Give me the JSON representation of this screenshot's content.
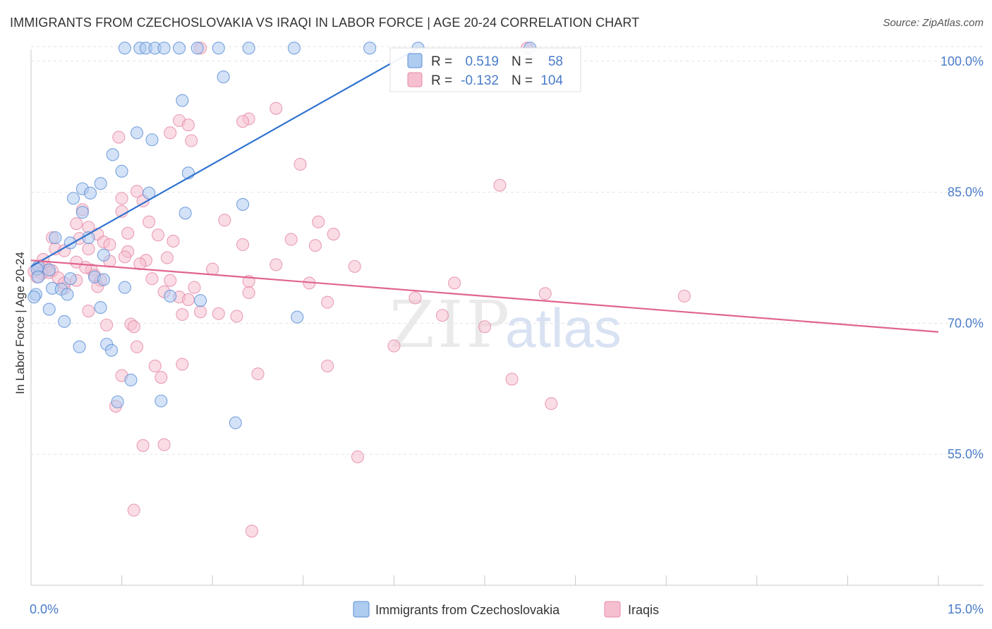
{
  "title": "IMMIGRANTS FROM CZECHOSLOVAKIA VS IRAQI IN LABOR FORCE | AGE 20-24 CORRELATION CHART",
  "source": "Source: ZipAtlas.com",
  "watermark": {
    "zip": "ZIP",
    "atlas": "atlas"
  },
  "colors": {
    "blue": "#5b8fd6",
    "blue_fill": "#aecbf0",
    "blue_line": "#2f73cf",
    "pink": "#e58aa8",
    "pink_fill": "#f6bfd0",
    "pink_line": "#e0648f",
    "axis_text": "#4a7cc9",
    "grid": "#e3e3e3"
  },
  "chart_data": {
    "type": "scatter",
    "title": "IMMIGRANTS FROM CZECHOSLOVAKIA VS IRAQI IN LABOR FORCE | AGE 20-24 CORRELATION CHART",
    "xlabel": "",
    "ylabel": "In Labor Force | Age 20-24",
    "xlim": [
      0,
      15
    ],
    "ylim": [
      40,
      102
    ],
    "x_tick_labels": [
      {
        "value": 0,
        "label": "0.0%"
      },
      {
        "value": 15,
        "label": "15.0%"
      }
    ],
    "y_ticks": [
      {
        "value": 100,
        "label": "100.0%"
      },
      {
        "value": 85,
        "label": "85.0%"
      },
      {
        "value": 70,
        "label": "70.0%"
      },
      {
        "value": 55,
        "label": "55.0%"
      }
    ],
    "legend_position": "top-center",
    "legend": [
      {
        "r_label": "R =",
        "r_value": "0.519",
        "n_label": "N =",
        "n_value": "58"
      },
      {
        "r_label": "R =",
        "r_value": "-0.132",
        "n_label": "N =",
        "n_value": "104"
      }
    ],
    "series": [
      {
        "name": "Immigrants from Czechoslovakia",
        "color": "blue",
        "r": 0.519,
        "n": 58,
        "trend": {
          "x0": 0.0,
          "y0": 76.5,
          "x1": 6.4,
          "y1": 101.5
        },
        "points": [
          [
            1.55,
            101.5
          ],
          [
            1.8,
            101.5
          ],
          [
            1.9,
            101.5
          ],
          [
            2.05,
            101.5
          ],
          [
            2.2,
            101.5
          ],
          [
            2.45,
            101.5
          ],
          [
            2.75,
            101.5
          ],
          [
            3.1,
            101.5
          ],
          [
            3.6,
            101.5
          ],
          [
            4.35,
            101.5
          ],
          [
            5.6,
            101.5
          ],
          [
            6.4,
            101.5
          ],
          [
            8.25,
            101.5
          ],
          [
            3.18,
            98.2
          ],
          [
            2.5,
            95.5
          ],
          [
            1.75,
            91.8
          ],
          [
            2.0,
            91.0
          ],
          [
            1.35,
            89.3
          ],
          [
            1.5,
            87.4
          ],
          [
            2.6,
            87.2
          ],
          [
            1.15,
            86.0
          ],
          [
            0.85,
            85.4
          ],
          [
            0.98,
            84.9
          ],
          [
            1.95,
            84.9
          ],
          [
            0.7,
            84.3
          ],
          [
            3.5,
            83.6
          ],
          [
            0.85,
            82.7
          ],
          [
            2.55,
            82.6
          ],
          [
            0.4,
            79.8
          ],
          [
            0.95,
            79.8
          ],
          [
            0.65,
            79.2
          ],
          [
            1.2,
            77.8
          ],
          [
            0.12,
            76.5
          ],
          [
            0.1,
            76.2
          ],
          [
            0.3,
            76.1
          ],
          [
            0.12,
            75.3
          ],
          [
            0.65,
            75.1
          ],
          [
            1.05,
            75.3
          ],
          [
            1.2,
            75.0
          ],
          [
            0.35,
            74.0
          ],
          [
            0.5,
            73.9
          ],
          [
            1.55,
            74.1
          ],
          [
            0.6,
            73.3
          ],
          [
            0.08,
            73.3
          ],
          [
            2.3,
            73.1
          ],
          [
            2.8,
            72.6
          ],
          [
            0.3,
            71.6
          ],
          [
            1.15,
            71.8
          ],
          [
            0.55,
            70.2
          ],
          [
            4.4,
            70.7
          ],
          [
            0.8,
            67.3
          ],
          [
            1.25,
            67.6
          ],
          [
            1.33,
            66.9
          ],
          [
            1.65,
            63.5
          ],
          [
            1.43,
            61.0
          ],
          [
            2.15,
            61.1
          ],
          [
            3.38,
            58.6
          ],
          [
            0.05,
            73.0
          ]
        ]
      },
      {
        "name": "Iraqis",
        "color": "pink",
        "r": -0.132,
        "n": 104,
        "trend": {
          "x0": 0.0,
          "y0": 77.2,
          "x1": 15.0,
          "y1": 69.0
        },
        "points": [
          [
            2.8,
            101.5
          ],
          [
            8.2,
            101.5
          ],
          [
            4.05,
            94.6
          ],
          [
            3.6,
            93.4
          ],
          [
            3.5,
            93.1
          ],
          [
            2.45,
            93.2
          ],
          [
            2.6,
            92.7
          ],
          [
            2.3,
            91.8
          ],
          [
            1.45,
            91.3
          ],
          [
            2.65,
            90.9
          ],
          [
            4.45,
            88.2
          ],
          [
            7.75,
            85.8
          ],
          [
            1.75,
            85.1
          ],
          [
            1.5,
            84.3
          ],
          [
            1.85,
            84.0
          ],
          [
            0.85,
            83.0
          ],
          [
            1.5,
            82.8
          ],
          [
            3.2,
            81.8
          ],
          [
            4.75,
            81.6
          ],
          [
            1.95,
            81.6
          ],
          [
            0.75,
            81.4
          ],
          [
            0.95,
            81.0
          ],
          [
            1.6,
            80.3
          ],
          [
            1.1,
            80.2
          ],
          [
            2.1,
            80.1
          ],
          [
            5.0,
            80.2
          ],
          [
            0.35,
            79.8
          ],
          [
            0.8,
            79.7
          ],
          [
            1.2,
            79.3
          ],
          [
            1.3,
            79.0
          ],
          [
            2.35,
            79.4
          ],
          [
            3.5,
            79.0
          ],
          [
            4.3,
            79.6
          ],
          [
            4.7,
            78.9
          ],
          [
            0.4,
            78.5
          ],
          [
            0.55,
            78.3
          ],
          [
            0.95,
            78.5
          ],
          [
            1.6,
            78.2
          ],
          [
            1.55,
            77.6
          ],
          [
            1.9,
            77.2
          ],
          [
            2.25,
            77.5
          ],
          [
            0.75,
            77.0
          ],
          [
            4.05,
            76.7
          ],
          [
            5.35,
            76.5
          ],
          [
            0.15,
            76.6
          ],
          [
            0.25,
            76.4
          ],
          [
            0.35,
            76.0
          ],
          [
            0.05,
            75.9
          ],
          [
            0.18,
            75.7
          ],
          [
            0.3,
            75.8
          ],
          [
            1.0,
            76.1
          ],
          [
            0.1,
            75.3
          ],
          [
            0.45,
            75.2
          ],
          [
            1.05,
            75.5
          ],
          [
            0.75,
            74.9
          ],
          [
            1.15,
            74.9
          ],
          [
            2.0,
            75.1
          ],
          [
            2.3,
            74.9
          ],
          [
            3.6,
            74.8
          ],
          [
            4.6,
            74.6
          ],
          [
            7.0,
            74.6
          ],
          [
            1.1,
            74.2
          ],
          [
            0.55,
            74.0
          ],
          [
            2.7,
            74.1
          ],
          [
            3.6,
            73.5
          ],
          [
            8.5,
            73.4
          ],
          [
            10.8,
            73.1
          ],
          [
            6.35,
            72.9
          ],
          [
            2.45,
            73.0
          ],
          [
            2.6,
            72.7
          ],
          [
            0.95,
            71.4
          ],
          [
            2.8,
            71.3
          ],
          [
            3.1,
            71.1
          ],
          [
            3.4,
            70.8
          ],
          [
            2.5,
            71.0
          ],
          [
            1.25,
            69.8
          ],
          [
            1.65,
            69.9
          ],
          [
            1.7,
            69.6
          ],
          [
            7.5,
            69.6
          ],
          [
            1.75,
            67.3
          ],
          [
            6.0,
            67.4
          ],
          [
            2.05,
            65.1
          ],
          [
            2.5,
            65.3
          ],
          [
            4.9,
            65.1
          ],
          [
            1.5,
            64.0
          ],
          [
            2.15,
            63.8
          ],
          [
            3.75,
            64.2
          ],
          [
            7.95,
            63.6
          ],
          [
            1.4,
            60.5
          ],
          [
            8.6,
            60.8
          ],
          [
            1.85,
            56.0
          ],
          [
            2.2,
            56.1
          ],
          [
            5.4,
            54.7
          ],
          [
            1.7,
            48.6
          ],
          [
            3.65,
            46.2
          ],
          [
            0.55,
            74.6
          ],
          [
            0.9,
            76.4
          ],
          [
            1.8,
            76.8
          ],
          [
            2.2,
            73.6
          ],
          [
            1.3,
            77.1
          ],
          [
            0.2,
            77.3
          ],
          [
            3.0,
            76.2
          ],
          [
            4.9,
            72.4
          ],
          [
            6.8,
            70.9
          ]
        ]
      }
    ]
  }
}
